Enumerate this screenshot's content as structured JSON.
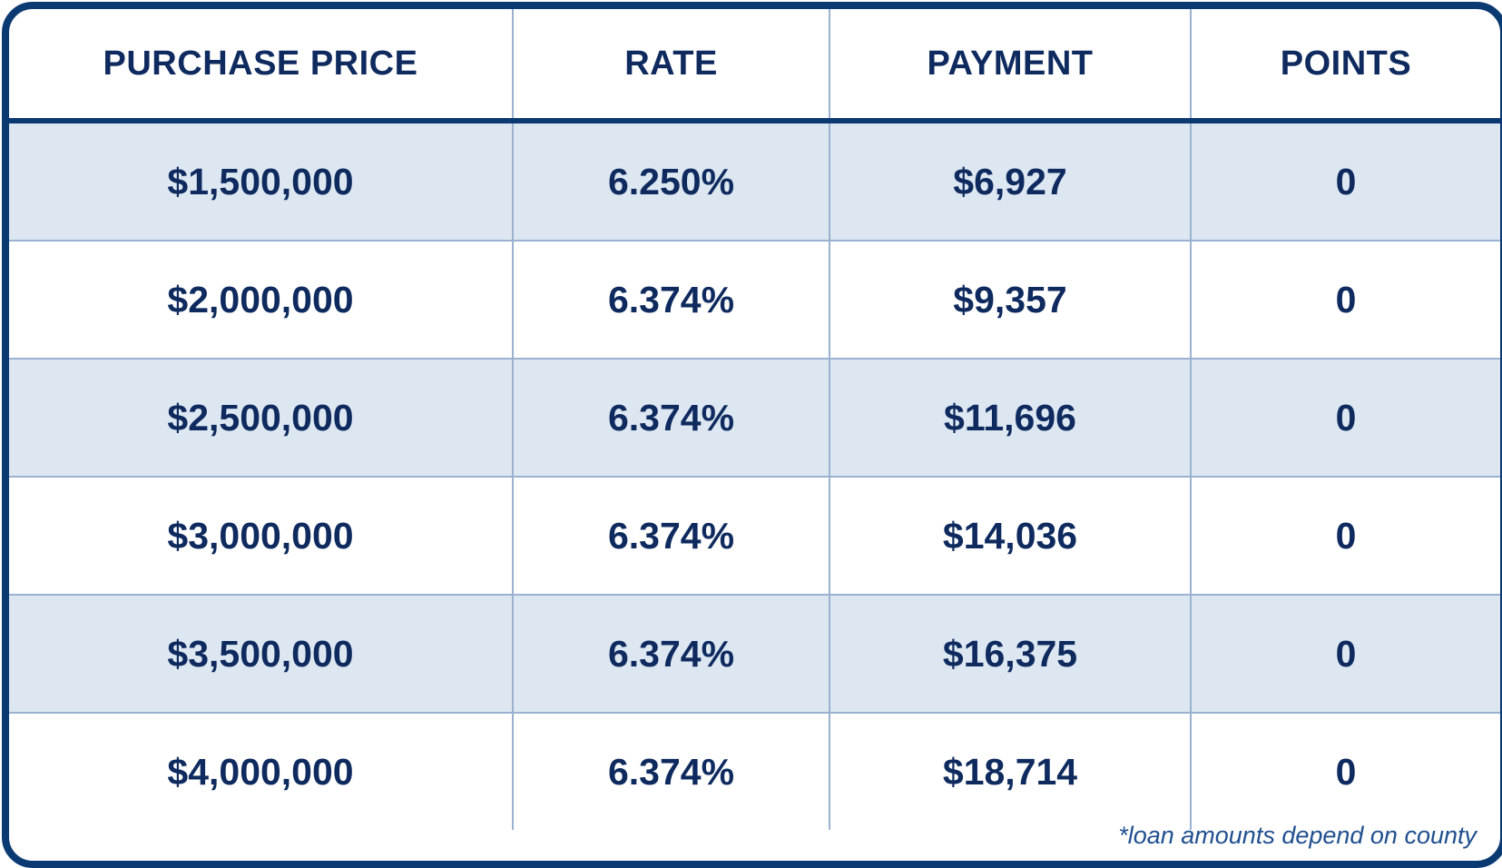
{
  "table": {
    "headers": [
      "PURCHASE PRICE",
      "RATE",
      "PAYMENT",
      "POINTS"
    ],
    "rows": [
      [
        "$1,500,000",
        "6.250%",
        "$6,927",
        "0"
      ],
      [
        "$2,000,000",
        "6.374%",
        "$9,357",
        "0"
      ],
      [
        "$2,500,000",
        "6.374%",
        "$11,696",
        "0"
      ],
      [
        "$3,000,000",
        "6.374%",
        "$14,036",
        "0"
      ],
      [
        "$3,500,000",
        "6.374%",
        "$16,375",
        "0"
      ],
      [
        "$4,000,000",
        "6.374%",
        "$18,714",
        "0"
      ]
    ]
  },
  "footnote": "*loan amounts depend on county",
  "colors": {
    "border": "#0b3a73",
    "text": "#0e2a5e",
    "stripe": "#dde7f2",
    "gridline": "#9ab2d0",
    "footnote": "#1f4f8f"
  }
}
